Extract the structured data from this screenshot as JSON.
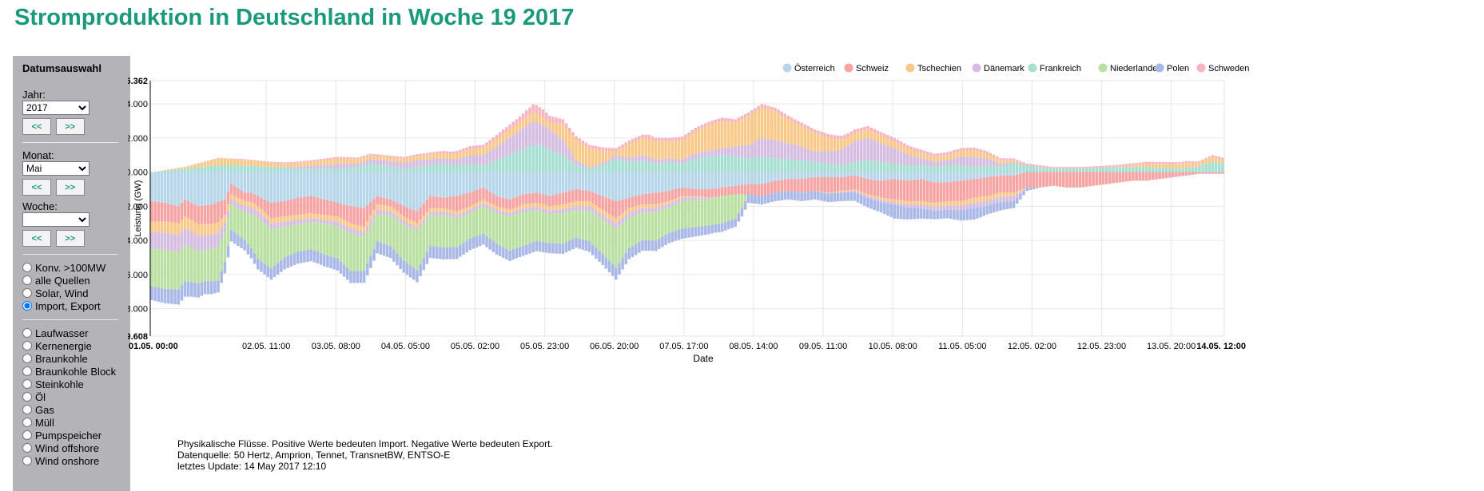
{
  "page": {
    "title": "Stromproduktion in Deutschland in Woche 19 2017"
  },
  "sidebar": {
    "title": "Datumsauswahl",
    "year_label": "Jahr:",
    "year_value": "2017",
    "month_label": "Monat:",
    "month_value": "Mai",
    "week_label": "Woche:",
    "week_value": "",
    "prev_label": "<<",
    "next_label": ">>",
    "views": [
      {
        "label": "Konv. >100MW",
        "checked": false
      },
      {
        "label": "alle Quellen",
        "checked": false
      },
      {
        "label": "Solar, Wind",
        "checked": false
      },
      {
        "label": "Import, Export",
        "checked": true
      }
    ],
    "sources": [
      "Laufwasser",
      "Kernenergie",
      "Braunkohle",
      "Braunkohle Block",
      "Steinkohle",
      "Öl",
      "Gas",
      "Müll",
      "Pumpspeicher",
      "Wind offshore",
      "Wind onshore"
    ]
  },
  "notes": {
    "line1": "Physikalische Flüsse. Positive Werte bedeuten Import. Negative Werte bedeuten Export.",
    "line2": "Datenquelle: 50 Hertz, Amprion, Tennet, TransnetBW, ENTSO-E",
    "line3": "letztes Update: 14 May 2017 12:10"
  },
  "chart_data": {
    "type": "area",
    "stacked": true,
    "ylabel": "Leistung (GW)",
    "xlabel": "Date",
    "ylim": [
      -9.608,
      5.362
    ],
    "yticks": [
      "5.362",
      "4.000",
      "2.000",
      "0.000",
      "-2.000",
      "-4.000",
      "-6.000",
      "-8.000",
      "-9.608"
    ],
    "ytick_values": [
      5.362,
      4,
      2,
      0,
      -2,
      -4,
      -6,
      -8,
      -9.608
    ],
    "x_start": "01.05. 00:00",
    "x_end": "14.05. 12:00",
    "xtick_labels": [
      "01.05. 00:00",
      "02.05. 11:00",
      "03.05. 08:00",
      "04.05. 05:00",
      "05.05. 02:00",
      "05.05. 23:00",
      "06.05. 20:00",
      "07.05. 17:00",
      "08.05. 14:00",
      "09.05. 11:00",
      "10.05. 08:00",
      "11.05. 05:00",
      "12.05. 02:00",
      "12.05. 23:00",
      "13.05. 20:00",
      "14.05. 12:00"
    ],
    "xtick_hours": [
      0,
      35,
      56,
      77,
      98,
      119,
      140,
      161,
      182,
      203,
      224,
      245,
      266,
      287,
      308,
      324
    ],
    "xtick_bold": [
      true,
      false,
      false,
      false,
      false,
      false,
      false,
      false,
      false,
      false,
      false,
      false,
      false,
      false,
      false,
      true
    ],
    "legend_position": "top-right",
    "grid": true,
    "series": [
      {
        "name": "Österreich",
        "color": "#b7d6ea"
      },
      {
        "name": "Schweiz",
        "color": "#f5a3a3"
      },
      {
        "name": "Tschechien",
        "color": "#f9c98a"
      },
      {
        "name": "Dänemark",
        "color": "#d5bde1"
      },
      {
        "name": "Frankreich",
        "color": "#a6dfd2"
      },
      {
        "name": "Niederlande",
        "color": "#b9e0a0"
      },
      {
        "name": "Polen",
        "color": "#a9b8e6"
      },
      {
        "name": "Schweden",
        "color": "#f7b5c1"
      }
    ],
    "positive": [
      {
        "name": "Frankreich",
        "x": [
          0,
          10,
          20,
          28,
          36,
          44,
          56,
          62,
          66,
          70,
          76,
          80,
          84,
          88,
          92,
          96,
          100,
          104,
          110,
          115,
          118,
          120,
          124,
          128,
          132,
          136,
          140,
          144,
          148,
          152,
          156,
          160,
          164,
          168,
          172,
          176,
          180,
          184,
          190,
          196,
          200,
          204,
          208,
          212,
          216,
          220,
          224,
          228,
          232,
          236,
          240,
          244,
          248,
          252,
          256,
          260,
          264,
          268,
          272,
          280,
          290,
          300,
          310,
          315,
          320,
          324
        ],
        "y": [
          0,
          0.2,
          0.4,
          0.4,
          0.3,
          0.2,
          0.2,
          0.3,
          0.5,
          0.4,
          0.2,
          0.3,
          0.4,
          0.5,
          0.4,
          0.5,
          0.4,
          0.7,
          1.2,
          1.6,
          1.5,
          1.3,
          1.0,
          0.4,
          0.2,
          0.4,
          0.8,
          0.6,
          0.7,
          0.5,
          0.6,
          0.5,
          0.8,
          0.9,
          1.0,
          0.9,
          0.8,
          0.9,
          0.8,
          0.7,
          0.6,
          0.5,
          0.4,
          0.6,
          0.7,
          0.6,
          0.5,
          0.4,
          0.4,
          0.3,
          0.4,
          0.4,
          0.3,
          0.4,
          0.3,
          0.5,
          0.4,
          0.3,
          0.2,
          0.2,
          0.3,
          0.3,
          0.2,
          0.3,
          0.6,
          0.5
        ]
      },
      {
        "name": "Dänemark",
        "x": [
          0,
          36,
          50,
          56,
          62,
          70,
          80,
          90,
          100,
          104,
          110,
          115,
          120,
          124,
          128,
          132,
          140,
          148,
          156,
          164,
          172,
          180,
          184,
          190,
          196,
          200,
          206,
          212,
          216,
          224,
          230,
          236,
          240,
          244,
          248,
          252,
          256,
          260,
          264,
          268,
          324
        ],
        "y": [
          0,
          0,
          0.2,
          0.3,
          0.2,
          0.3,
          0.4,
          0.3,
          0.6,
          0.8,
          1.1,
          1.4,
          1.2,
          0.9,
          0.3,
          0.1,
          0.2,
          0.3,
          0.2,
          0.3,
          0.4,
          0.8,
          1.1,
          1.0,
          0.8,
          0.6,
          0.8,
          1.2,
          1.3,
          0.9,
          0.5,
          0.3,
          0.3,
          0.5,
          0.6,
          0.4,
          0.2,
          0.1,
          0,
          0,
          0
        ]
      },
      {
        "name": "Tschechien",
        "x": [
          0,
          10,
          20,
          30,
          40,
          56,
          70,
          90,
          100,
          110,
          116,
          120,
          124,
          128,
          132,
          136,
          140,
          144,
          150,
          156,
          162,
          168,
          172,
          176,
          180,
          184,
          188,
          192,
          196,
          200,
          204,
          210,
          216,
          224,
          232,
          240,
          248,
          256,
          260,
          264,
          270,
          280,
          290,
          300,
          312,
          316,
          320,
          324
        ],
        "y": [
          0,
          0.1,
          0.4,
          0.3,
          0.2,
          0.3,
          0.2,
          0.3,
          0.4,
          0.5,
          0.5,
          0.4,
          0.9,
          1.2,
          1.1,
          0.7,
          0.2,
          0.8,
          1.1,
          1.0,
          1.2,
          1.5,
          1.6,
          1.4,
          1.7,
          1.8,
          1.7,
          1.4,
          1.2,
          1.1,
          0.8,
          0.5,
          0.5,
          0.4,
          0.3,
          0.3,
          0.4,
          0.2,
          0.1,
          0,
          0,
          0,
          0,
          0.2,
          0.3,
          0.2,
          0.3,
          0.2
        ]
      },
      {
        "name": "Schweden",
        "x": [
          0,
          60,
          80,
          100,
          110,
          116,
          120,
          128,
          140,
          180,
          200,
          230,
          260,
          300,
          324
        ],
        "y": [
          0,
          0.1,
          0.1,
          0.2,
          0.3,
          0.5,
          0.4,
          0.2,
          0.2,
          0.2,
          0.2,
          0.2,
          0.1,
          0.1,
          0.1
        ]
      }
    ],
    "negative": [
      {
        "name": "Österreich",
        "x": [
          0,
          4,
          8,
          10,
          14,
          18,
          22,
          24,
          28,
          30,
          34,
          36,
          40,
          44,
          48,
          52,
          56,
          60,
          64,
          68,
          72,
          76,
          80,
          84,
          88,
          92,
          96,
          100,
          104,
          108,
          112,
          116,
          120,
          124,
          128,
          132,
          136,
          140,
          144,
          148,
          152,
          156,
          160,
          164,
          168,
          172,
          176,
          180,
          184,
          188,
          192,
          196,
          200,
          204,
          208,
          212,
          216,
          220,
          224,
          228,
          232,
          236,
          240,
          244,
          248,
          252,
          256,
          260,
          264,
          270,
          280,
          290,
          300,
          310,
          324
        ],
        "y": [
          1.7,
          1.8,
          2.0,
          1.6,
          2.0,
          1.9,
          1.6,
          0.7,
          1.2,
          1.2,
          1.6,
          1.8,
          1.7,
          1.5,
          1.4,
          1.6,
          1.8,
          2.0,
          2.1,
          1.4,
          1.6,
          2.0,
          2.3,
          1.4,
          1.5,
          1.4,
          1.2,
          0.9,
          1.4,
          1.6,
          1.3,
          1.2,
          1.4,
          1.2,
          1.0,
          1.1,
          1.4,
          1.7,
          1.5,
          1.3,
          1.2,
          1.1,
          0.9,
          1.0,
          1.0,
          0.9,
          0.8,
          0.7,
          0.7,
          0.5,
          0.4,
          0.4,
          0.3,
          0.3,
          0.3,
          0.2,
          0.4,
          0.5,
          0.4,
          0.5,
          0.4,
          0.6,
          0.6,
          0.5,
          0.4,
          0.3,
          0.2,
          0.2,
          0,
          0,
          0,
          0,
          0,
          0,
          0
        ]
      },
      {
        "name": "Schweiz",
        "x": [
          0,
          4,
          8,
          12,
          16,
          20,
          24,
          28,
          32,
          36,
          40,
          44,
          48,
          52,
          56,
          60,
          64,
          68,
          72,
          76,
          80,
          84,
          88,
          92,
          96,
          100,
          104,
          108,
          112,
          116,
          120,
          124,
          128,
          132,
          136,
          140,
          144,
          148,
          152,
          156,
          160,
          164,
          168,
          172,
          176,
          180,
          184,
          188,
          192,
          196,
          200,
          204,
          208,
          212,
          216,
          220,
          224,
          228,
          232,
          236,
          240,
          244,
          248,
          252,
          256,
          260,
          264,
          268,
          272,
          276,
          280,
          284,
          288,
          292,
          296,
          300,
          304,
          308,
          312,
          316,
          320,
          324
        ],
        "y": [
          1.2,
          1.1,
          1.0,
          1.0,
          1.1,
          1.2,
          0.6,
          0.5,
          0.6,
          0.9,
          0.9,
          1.0,
          1.0,
          0.9,
          0.8,
          1.0,
          1.1,
          0.5,
          0.4,
          0.6,
          0.7,
          0.7,
          0.6,
          0.9,
          0.8,
          0.7,
          0.6,
          0.6,
          0.6,
          0.6,
          0.6,
          0.7,
          0.7,
          0.6,
          0.8,
          1.0,
          0.6,
          0.6,
          0.7,
          0.6,
          0.5,
          0.4,
          0.5,
          0.5,
          0.5,
          0.6,
          0.7,
          0.7,
          0.7,
          0.8,
          0.8,
          0.9,
          0.8,
          0.8,
          0.9,
          1.0,
          1.2,
          1.2,
          1.3,
          1.2,
          1.1,
          1.2,
          1.1,
          1.1,
          1.0,
          1.0,
          0.9,
          0.9,
          0.8,
          0.9,
          0.9,
          0.8,
          0.7,
          0.6,
          0.5,
          0.5,
          0.4,
          0.3,
          0.2,
          0.1,
          0.1,
          0.1
        ]
      },
      {
        "name": "Tschechien",
        "x": [
          0,
          10,
          20,
          24,
          30,
          40,
          56,
          70,
          90,
          110,
          130,
          140,
          150,
          160,
          170,
          180,
          200,
          230,
          250,
          260,
          264,
          324
        ],
        "y": [
          0.6,
          0.7,
          0.6,
          0.3,
          0.3,
          0.3,
          0.3,
          0.3,
          0.2,
          0.2,
          0.3,
          0.3,
          0.2,
          0.1,
          0,
          0,
          0,
          0.2,
          0.3,
          0.2,
          0,
          0
        ]
      },
      {
        "name": "Dänemark",
        "x": [
          0,
          10,
          20,
          24,
          30,
          40,
          50,
          60,
          80,
          100,
          120,
          140,
          160,
          168,
          172,
          180,
          200,
          230,
          250,
          260,
          264,
          324
        ],
        "y": [
          1.0,
          1.0,
          0.8,
          0.3,
          0.4,
          0.3,
          0.2,
          0.3,
          0.2,
          0.2,
          0.2,
          0.3,
          0.2,
          0.1,
          0,
          0,
          0,
          0.2,
          0.3,
          0.3,
          0,
          0
        ]
      },
      {
        "name": "Niederlande",
        "x": [
          0,
          4,
          8,
          12,
          16,
          20,
          24,
          28,
          32,
          36,
          40,
          44,
          48,
          52,
          56,
          60,
          64,
          68,
          72,
          76,
          80,
          84,
          88,
          92,
          96,
          100,
          104,
          108,
          112,
          116,
          120,
          124,
          128,
          132,
          136,
          140,
          144,
          148,
          152,
          156,
          160,
          164,
          168,
          172,
          176,
          178,
          180,
          324
        ],
        "y": [
          2.2,
          2.3,
          2.2,
          2.0,
          1.8,
          2.0,
          1.5,
          1.6,
          2.4,
          2.3,
          1.8,
          1.6,
          1.6,
          1.8,
          1.9,
          2.2,
          2.0,
          1.6,
          1.8,
          2.1,
          2.3,
          1.8,
          1.9,
          1.7,
          1.5,
          1.6,
          1.8,
          2.0,
          2.0,
          1.8,
          1.7,
          1.8,
          1.6,
          1.8,
          2.0,
          2.3,
          1.8,
          1.6,
          1.7,
          1.5,
          1.6,
          1.6,
          1.5,
          1.6,
          1.4,
          0.8,
          0,
          0
        ]
      },
      {
        "name": "Polen",
        "x": [
          0,
          10,
          20,
          30,
          40,
          56,
          70,
          90,
          110,
          120,
          130,
          140,
          150,
          160,
          170,
          180,
          190,
          200,
          210,
          220,
          224,
          228,
          232,
          236,
          240,
          244,
          248,
          252,
          256,
          260,
          264,
          268,
          324
        ],
        "y": [
          0.8,
          0.9,
          0.7,
          0.6,
          0.7,
          0.7,
          0.7,
          0.7,
          0.6,
          0.6,
          0.6,
          0.7,
          0.6,
          0.6,
          0.5,
          0.5,
          0.5,
          0.5,
          0.5,
          0.6,
          0.8,
          0.7,
          0.6,
          0.5,
          0.5,
          0.6,
          0.7,
          0.5,
          0.5,
          0.4,
          0.2,
          0,
          0
        ]
      },
      {
        "name": "Schweden",
        "x": [
          0,
          100,
          200,
          324
        ],
        "y": [
          0,
          0,
          0,
          0
        ]
      }
    ]
  }
}
